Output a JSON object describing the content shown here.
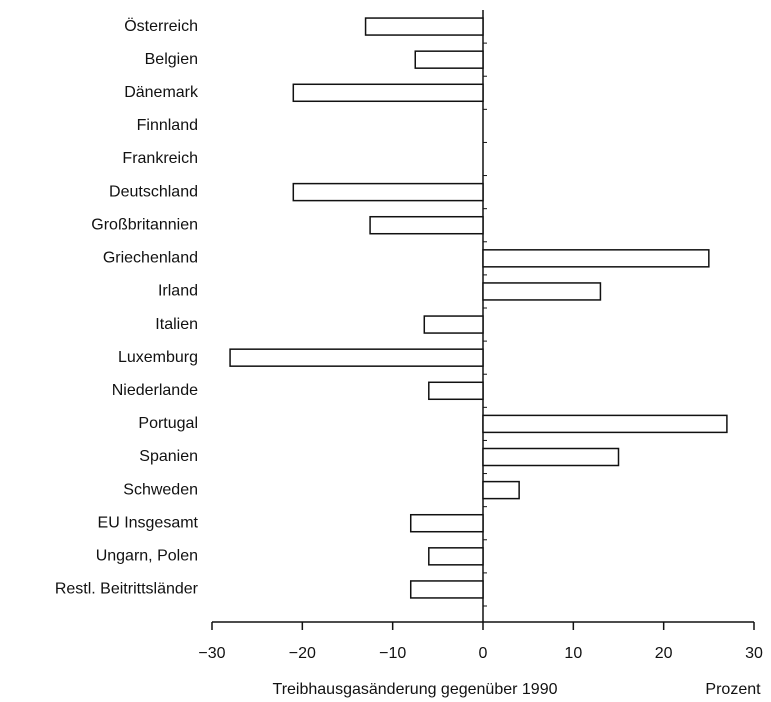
{
  "chart_data": {
    "type": "hbar",
    "categories": [
      "Österreich",
      "Belgien",
      "Dänemark",
      "Finnland",
      "Frankreich",
      "Deutschland",
      "Großbritannien",
      "Griechenland",
      "Irland",
      "Italien",
      "Luxemburg",
      "Niederlande",
      "Portugal",
      "Spanien",
      "Schweden",
      "EU Insgesamt",
      "Ungarn, Polen",
      "Restl. Beitrittsländer"
    ],
    "values": [
      -13,
      -7.5,
      -21,
      0,
      0,
      -21,
      -12.5,
      25,
      13,
      -6.5,
      -28,
      -6,
      27,
      15,
      4,
      -8,
      -6,
      -8
    ],
    "color": "#ffffff",
    "xlim": [
      -30,
      30
    ],
    "xticks": [
      {
        "value": -30,
        "label": "−30"
      },
      {
        "value": -20,
        "label": "−20"
      },
      {
        "value": -10,
        "label": "−10"
      },
      0,
      10,
      20,
      30
    ],
    "x_label": "Treibhausgasänderung gegenüber 1990",
    "x_unit": "Prozent",
    "grid": false
  }
}
